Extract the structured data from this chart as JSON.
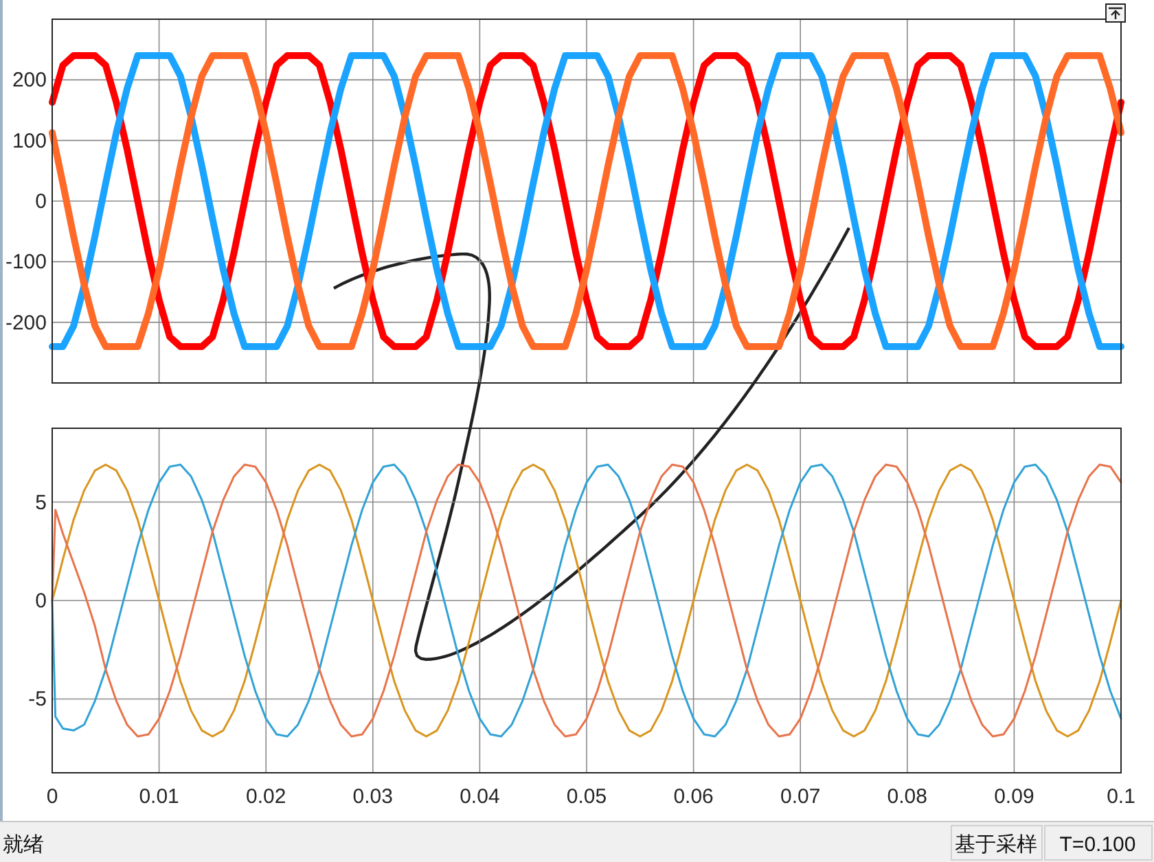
{
  "chart_data": [
    {
      "type": "line",
      "xlim": [
        0,
        0.1
      ],
      "ylim": [
        -300,
        300
      ],
      "xticks": [
        0,
        0.01,
        0.02,
        0.03,
        0.04,
        0.05,
        0.06,
        0.07,
        0.08,
        0.09,
        0.1
      ],
      "yticks": [
        -200,
        -100,
        0,
        100,
        200
      ],
      "grid": true,
      "tick_labels": "y",
      "x": [
        0,
        0.001,
        0.002,
        0.003,
        0.004,
        0.005,
        0.006,
        0.007,
        0.008,
        0.009,
        0.01,
        0.011,
        0.012,
        0.013,
        0.014,
        0.015,
        0.016,
        0.017,
        0.018,
        0.019,
        0.02,
        0.021,
        0.022,
        0.023,
        0.024,
        0.025,
        0.026,
        0.027,
        0.028,
        0.029,
        0.03,
        0.031,
        0.032,
        0.033,
        0.034,
        0.035,
        0.036,
        0.037,
        0.038,
        0.039,
        0.04,
        0.041,
        0.042,
        0.043,
        0.044,
        0.045,
        0.046,
        0.047,
        0.048,
        0.049,
        0.05,
        0.051,
        0.052,
        0.053,
        0.054,
        0.055,
        0.056,
        0.057,
        0.058,
        0.059,
        0.06,
        0.061,
        0.062,
        0.063,
        0.064,
        0.065,
        0.066,
        0.067,
        0.068,
        0.069,
        0.07,
        0.071,
        0.072,
        0.073,
        0.074,
        0.075,
        0.076,
        0.077,
        0.078,
        0.079,
        0.08,
        0.081,
        0.082,
        0.083,
        0.084,
        0.085,
        0.086,
        0.087,
        0.088,
        0.089,
        0.09,
        0.091,
        0.092,
        0.093,
        0.094,
        0.095,
        0.096,
        0.097,
        0.098,
        0.099,
        0.1
      ],
      "series": [
        {
          "color": "#ff0000",
          "values": [
            163,
            224,
            240,
            240,
            240,
            224,
            163,
            86,
            0,
            -86,
            -163,
            -224,
            -240,
            -240,
            -240,
            -224,
            -163,
            -86,
            0,
            86,
            163,
            224,
            240,
            240,
            240,
            224,
            163,
            86,
            0,
            -86,
            -163,
            -224,
            -240,
            -240,
            -240,
            -224,
            -163,
            -86,
            0,
            86,
            163,
            224,
            240,
            240,
            240,
            224,
            163,
            86,
            0,
            -86,
            -163,
            -224,
            -240,
            -240,
            -240,
            -224,
            -163,
            -86,
            0,
            86,
            163,
            224,
            240,
            240,
            240,
            224,
            163,
            86,
            0,
            -86,
            -163,
            -224,
            -240,
            -240,
            -240,
            -224,
            -163,
            -86,
            0,
            86,
            163,
            224,
            240,
            240,
            240,
            224,
            163,
            86,
            0,
            -86,
            -163,
            -224,
            -240,
            -240,
            -240,
            -224,
            -163,
            -86,
            0,
            86,
            163
          ]
        },
        {
          "color": "#1aa3ff",
          "values": [
            -240,
            -240,
            -206,
            -139,
            -58,
            29,
            113,
            185,
            240,
            240,
            240,
            240,
            206,
            139,
            58,
            -29,
            -113,
            -185,
            -240,
            -240,
            -240,
            -240,
            -206,
            -139,
            -58,
            29,
            113,
            185,
            240,
            240,
            240,
            240,
            206,
            139,
            58,
            -29,
            -113,
            -185,
            -240,
            -240,
            -240,
            -240,
            -206,
            -139,
            -58,
            29,
            113,
            185,
            240,
            240,
            240,
            240,
            206,
            139,
            58,
            -29,
            -113,
            -185,
            -240,
            -240,
            -240,
            -240,
            -206,
            -139,
            -58,
            29,
            113,
            185,
            240,
            240,
            240,
            240,
            206,
            139,
            58,
            -29,
            -113,
            -185,
            -240,
            -240,
            -240,
            -240,
            -206,
            -139,
            -58,
            29,
            113,
            185,
            240,
            240,
            240,
            240,
            206,
            139,
            58,
            -29,
            -113,
            -185,
            -240,
            -240,
            -240
          ]
        },
        {
          "color": "#ff6a28",
          "values": [
            113,
            29,
            -58,
            -139,
            -206,
            -240,
            -240,
            -240,
            -240,
            -185,
            -113,
            -29,
            58,
            139,
            206,
            240,
            240,
            240,
            240,
            185,
            113,
            29,
            -58,
            -139,
            -206,
            -240,
            -240,
            -240,
            -240,
            -185,
            -113,
            -29,
            58,
            139,
            206,
            240,
            240,
            240,
            240,
            185,
            113,
            29,
            -58,
            -139,
            -206,
            -240,
            -240,
            -240,
            -240,
            -185,
            -113,
            -29,
            58,
            139,
            206,
            240,
            240,
            240,
            240,
            185,
            113,
            29,
            -58,
            -139,
            -206,
            -240,
            -240,
            -240,
            -240,
            -185,
            -113,
            -29,
            58,
            139,
            206,
            240,
            240,
            240,
            240,
            185,
            113,
            29,
            -58,
            -139,
            -206,
            -240,
            -240,
            -240,
            -240,
            -185,
            -113,
            -29,
            58,
            139,
            206,
            240,
            240,
            240,
            240,
            185,
            113
          ]
        }
      ]
    },
    {
      "type": "line",
      "xlim": [
        0,
        0.1
      ],
      "ylim": [
        -8.75,
        8.75
      ],
      "xticks": [
        0,
        0.01,
        0.02,
        0.03,
        0.04,
        0.05,
        0.06,
        0.07,
        0.08,
        0.09,
        0.1
      ],
      "yticks": [
        -5,
        0,
        5
      ],
      "grid": true,
      "annotations": [
        "就绪",
        "基于采样",
        "T=0.100"
      ],
      "x": [
        0,
        0.0003,
        0.001,
        0.002,
        0.003,
        0.004,
        0.005,
        0.006,
        0.007,
        0.008,
        0.009,
        0.01,
        0.011,
        0.012,
        0.013,
        0.014,
        0.015,
        0.016,
        0.017,
        0.018,
        0.019,
        0.02,
        0.021,
        0.022,
        0.023,
        0.024,
        0.025,
        0.026,
        0.027,
        0.028,
        0.029,
        0.03,
        0.031,
        0.032,
        0.033,
        0.034,
        0.035,
        0.036,
        0.037,
        0.038,
        0.039,
        0.04,
        0.041,
        0.042,
        0.043,
        0.044,
        0.045,
        0.046,
        0.047,
        0.048,
        0.049,
        0.05,
        0.051,
        0.052,
        0.053,
        0.054,
        0.055,
        0.056,
        0.057,
        0.058,
        0.059,
        0.06,
        0.061,
        0.062,
        0.063,
        0.064,
        0.065,
        0.066,
        0.067,
        0.068,
        0.069,
        0.07,
        0.071,
        0.072,
        0.073,
        0.074,
        0.075,
        0.076,
        0.077,
        0.078,
        0.079,
        0.08,
        0.081,
        0.082,
        0.083,
        0.084,
        0.085,
        0.086,
        0.087,
        0.088,
        0.089,
        0.09,
        0.091,
        0.092,
        0.093,
        0.094,
        0.095,
        0.096,
        0.097,
        0.098,
        0.099,
        0.1
      ],
      "series": [
        {
          "color": "#d9951f",
          "values": [
            0,
            0.6,
            2.1,
            4.1,
            5.6,
            6.6,
            6.9,
            6.6,
            5.6,
            4.1,
            2.1,
            0,
            -2.1,
            -4.1,
            -5.6,
            -6.6,
            -6.9,
            -6.6,
            -5.6,
            -4.1,
            -2.1,
            0,
            2.1,
            4.1,
            5.6,
            6.6,
            6.9,
            6.6,
            5.6,
            4.1,
            2.1,
            0,
            -2.1,
            -4.1,
            -5.6,
            -6.6,
            -6.9,
            -6.6,
            -5.6,
            -4.1,
            -2.1,
            0,
            2.1,
            4.1,
            5.6,
            6.6,
            6.9,
            6.6,
            5.6,
            4.1,
            2.1,
            0,
            -2.1,
            -4.1,
            -5.6,
            -6.6,
            -6.9,
            -6.6,
            -5.6,
            -4.1,
            -2.1,
            0,
            2.1,
            4.1,
            5.6,
            6.6,
            6.9,
            6.6,
            5.6,
            4.1,
            2.1,
            0,
            -2.1,
            -4.1,
            -5.6,
            -6.6,
            -6.9,
            -6.6,
            -5.6,
            -4.1,
            -2.1,
            0,
            2.1,
            4.1,
            5.6,
            6.6,
            6.9,
            6.6,
            5.6,
            4.1,
            2.1,
            0,
            -2.1,
            -4.1,
            -5.6,
            -6.6,
            -6.9,
            -6.6,
            -5.6,
            -4.1,
            -2.1,
            0
          ]
        },
        {
          "color": "#31a2d6",
          "values": [
            0,
            -5.9,
            -6.5,
            -6.6,
            -6.3,
            -5.1,
            -3.5,
            -1.4,
            0.7,
            2.8,
            4.6,
            6.0,
            6.8,
            6.9,
            6.3,
            5.1,
            3.5,
            1.4,
            -0.7,
            -2.8,
            -4.6,
            -6.0,
            -6.8,
            -6.9,
            -6.3,
            -5.1,
            -3.5,
            -1.4,
            0.7,
            2.8,
            4.6,
            6.0,
            6.8,
            6.9,
            6.3,
            5.1,
            3.5,
            1.4,
            -0.7,
            -2.8,
            -4.6,
            -6.0,
            -6.8,
            -6.9,
            -6.3,
            -5.1,
            -3.5,
            -1.4,
            0.7,
            2.8,
            4.6,
            6.0,
            6.8,
            6.9,
            6.3,
            5.1,
            3.5,
            1.4,
            -0.7,
            -2.8,
            -4.6,
            -6.0,
            -6.8,
            -6.9,
            -6.3,
            -5.1,
            -3.5,
            -1.4,
            0.7,
            2.8,
            4.6,
            6.0,
            6.8,
            6.9,
            6.3,
            5.1,
            3.5,
            1.4,
            -0.7,
            -2.8,
            -4.6,
            -6.0,
            -6.8,
            -6.9,
            -6.3,
            -5.1,
            -3.5,
            -1.4,
            0.7,
            2.8,
            4.6,
            6.0,
            6.8,
            6.9,
            6.3,
            5.1,
            3.5,
            1.4,
            -0.7,
            -2.8,
            -4.6,
            -6.0
          ]
        },
        {
          "color": "#e8734a",
          "values": [
            0,
            4.6,
            3.4,
            1.9,
            0.4,
            -1.3,
            -3.5,
            -5.1,
            -6.3,
            -6.9,
            -6.8,
            -6.0,
            -4.6,
            -2.8,
            -0.7,
            1.4,
            3.5,
            5.1,
            6.3,
            6.9,
            6.8,
            6.0,
            4.6,
            2.8,
            0.7,
            -1.4,
            -3.5,
            -5.1,
            -6.3,
            -6.9,
            -6.8,
            -6.0,
            -4.6,
            -2.8,
            -0.7,
            1.4,
            3.5,
            5.1,
            6.3,
            6.9,
            6.8,
            6.0,
            4.6,
            2.8,
            0.7,
            -1.4,
            -3.5,
            -5.1,
            -6.3,
            -6.9,
            -6.8,
            -6.0,
            -4.6,
            -2.8,
            -0.7,
            1.4,
            3.5,
            5.1,
            6.3,
            6.9,
            6.8,
            6.0,
            4.6,
            2.8,
            0.7,
            -1.4,
            -3.5,
            -5.1,
            -6.3,
            -6.9,
            -6.8,
            -6.0,
            -4.6,
            -2.8,
            -0.7,
            1.4,
            3.5,
            5.1,
            6.3,
            6.9,
            6.8,
            6.0,
            4.6,
            2.8,
            0.7,
            -1.4,
            -3.5,
            -5.1,
            -6.3,
            -6.9,
            -6.8,
            -6.0,
            -4.6,
            -2.8,
            -0.7,
            1.4,
            3.5,
            5.1,
            6.3,
            6.9,
            6.8,
            6.0
          ]
        }
      ]
    }
  ]
}
